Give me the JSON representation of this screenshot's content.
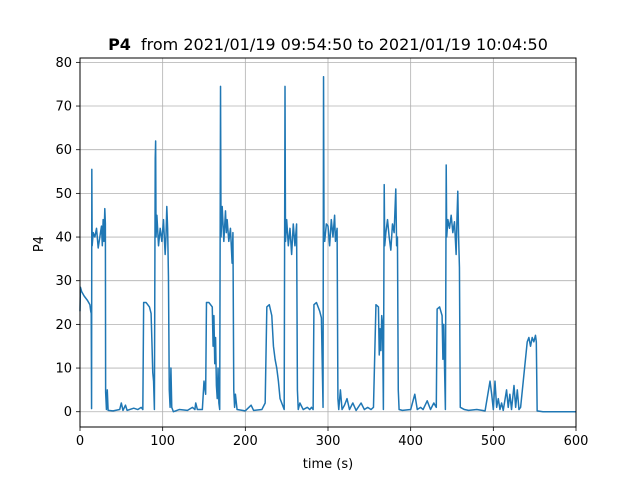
{
  "chart_data": {
    "type": "line",
    "title_bold": "P4",
    "title_rest": "from 2021/01/19 09:54:50 to 2021/01/19 10:04:50",
    "xlabel": "time (s)",
    "ylabel": "P4",
    "xlim": [
      0,
      600
    ],
    "ylim": [
      -3.5,
      81
    ],
    "xticks": [
      0,
      100,
      200,
      300,
      400,
      500,
      600
    ],
    "yticks": [
      0,
      10,
      20,
      30,
      40,
      50,
      60,
      70,
      80
    ],
    "grid": true,
    "line_color": "#1f77b4",
    "series": [
      {
        "points": [
          [
            0,
            23
          ],
          [
            0.5,
            28.5
          ],
          [
            2,
            27.5
          ],
          [
            5,
            26.5
          ],
          [
            9,
            25.5
          ],
          [
            12,
            24.5
          ],
          [
            13,
            23
          ],
          [
            13.6,
            22.5
          ],
          [
            14,
            0.7
          ],
          [
            14.3,
            55.5
          ],
          [
            14.7,
            38
          ],
          [
            16,
            41
          ],
          [
            18,
            40
          ],
          [
            20,
            42
          ],
          [
            22,
            37.5
          ],
          [
            24,
            40
          ],
          [
            26,
            42.5
          ],
          [
            27,
            38
          ],
          [
            28,
            44
          ],
          [
            29,
            39
          ],
          [
            30,
            46.5
          ],
          [
            30.7,
            43
          ],
          [
            31,
            4.5
          ],
          [
            32,
            0.5
          ],
          [
            33,
            5
          ],
          [
            34,
            0.3
          ],
          [
            40,
            0.2
          ],
          [
            48,
            0.5
          ],
          [
            50,
            2
          ],
          [
            52,
            0.3
          ],
          [
            55,
            1.5
          ],
          [
            57,
            0.3
          ],
          [
            65,
            0.8
          ],
          [
            70,
            0.5
          ],
          [
            74,
            1
          ],
          [
            76,
            0.5
          ],
          [
            77,
            25
          ],
          [
            80,
            25
          ],
          [
            84,
            24
          ],
          [
            86,
            22.5
          ],
          [
            87,
            16
          ],
          [
            88,
            9
          ],
          [
            89,
            7
          ],
          [
            90,
            0.5
          ],
          [
            91,
            58
          ],
          [
            91.5,
            62
          ],
          [
            92,
            40
          ],
          [
            93,
            45
          ],
          [
            95,
            38
          ],
          [
            97,
            42
          ],
          [
            99,
            39
          ],
          [
            101,
            44
          ],
          [
            103,
            36
          ],
          [
            104,
            40
          ],
          [
            105,
            47
          ],
          [
            106,
            42
          ],
          [
            107,
            31
          ],
          [
            108,
            5
          ],
          [
            109,
            1
          ],
          [
            110,
            10
          ],
          [
            111,
            1
          ],
          [
            113,
            0
          ],
          [
            120,
            0.5
          ],
          [
            130,
            0.3
          ],
          [
            136,
            1
          ],
          [
            139,
            0.5
          ],
          [
            140,
            2
          ],
          [
            142,
            0.5
          ],
          [
            148,
            0.5
          ],
          [
            150,
            7
          ],
          [
            152,
            4
          ],
          [
            153,
            25
          ],
          [
            156,
            25
          ],
          [
            160,
            24
          ],
          [
            161,
            15
          ],
          [
            162,
            22
          ],
          [
            163,
            11
          ],
          [
            164,
            17
          ],
          [
            165,
            6
          ],
          [
            166,
            3
          ],
          [
            167,
            10
          ],
          [
            168,
            2
          ],
          [
            169,
            0.5
          ],
          [
            170,
            74.5
          ],
          [
            170.6,
            40
          ],
          [
            172,
            47
          ],
          [
            174,
            39
          ],
          [
            176,
            46
          ],
          [
            177,
            41
          ],
          [
            178,
            44
          ],
          [
            180,
            39
          ],
          [
            182,
            42
          ],
          [
            183,
            38
          ],
          [
            184,
            34
          ],
          [
            185,
            41
          ],
          [
            186,
            5
          ],
          [
            187,
            1
          ],
          [
            188,
            4
          ],
          [
            190,
            0.5
          ],
          [
            200,
            0.2
          ],
          [
            207,
            1.5
          ],
          [
            210,
            0.3
          ],
          [
            220,
            0.5
          ],
          [
            224,
            2
          ],
          [
            226,
            24
          ],
          [
            229,
            24.5
          ],
          [
            232,
            22
          ],
          [
            234,
            15
          ],
          [
            236,
            12
          ],
          [
            238,
            10
          ],
          [
            240,
            7
          ],
          [
            242,
            3
          ],
          [
            245,
            1.5
          ],
          [
            247,
            0.5
          ],
          [
            248,
            74.5
          ],
          [
            248.6,
            39
          ],
          [
            250,
            44
          ],
          [
            252,
            38
          ],
          [
            254,
            42
          ],
          [
            256,
            36
          ],
          [
            258,
            43
          ],
          [
            260,
            38
          ],
          [
            262,
            43
          ],
          [
            263,
            5
          ],
          [
            264,
            0.5
          ],
          [
            266,
            2
          ],
          [
            270,
            0.5
          ],
          [
            275,
            1
          ],
          [
            278,
            0.5
          ],
          [
            280,
            1
          ],
          [
            282,
            0.5
          ],
          [
            283,
            24.5
          ],
          [
            286,
            25
          ],
          [
            290,
            23
          ],
          [
            292,
            21.5
          ],
          [
            294,
            1
          ],
          [
            294.6,
            76.7
          ],
          [
            295.2,
            40
          ],
          [
            296,
            39
          ],
          [
            298,
            43
          ],
          [
            300,
            42.5
          ],
          [
            302,
            38
          ],
          [
            304,
            44
          ],
          [
            306,
            40
          ],
          [
            308,
            45
          ],
          [
            309,
            39
          ],
          [
            311,
            42
          ],
          [
            312,
            3
          ],
          [
            313,
            0.5
          ],
          [
            315,
            5
          ],
          [
            317,
            0.5
          ],
          [
            320,
            1.5
          ],
          [
            323,
            3
          ],
          [
            326,
            0.5
          ],
          [
            330,
            2
          ],
          [
            334,
            0.3
          ],
          [
            340,
            2
          ],
          [
            344,
            0.5
          ],
          [
            348,
            1
          ],
          [
            352,
            0.5
          ],
          [
            355,
            1
          ],
          [
            358,
            24.5
          ],
          [
            361,
            24
          ],
          [
            362,
            13
          ],
          [
            363,
            19
          ],
          [
            364,
            14
          ],
          [
            365,
            22
          ],
          [
            366,
            20
          ],
          [
            367,
            0.5
          ],
          [
            368,
            52
          ],
          [
            368.6,
            38
          ],
          [
            370,
            41
          ],
          [
            372,
            44
          ],
          [
            374,
            40
          ],
          [
            376,
            37
          ],
          [
            378,
            43
          ],
          [
            380,
            41
          ],
          [
            382,
            51
          ],
          [
            383,
            38
          ],
          [
            384,
            40
          ],
          [
            385,
            5
          ],
          [
            386,
            0.5
          ],
          [
            390,
            0.3
          ],
          [
            400,
            0.5
          ],
          [
            405,
            4
          ],
          [
            408,
            0.5
          ],
          [
            412,
            1
          ],
          [
            415,
            0.5
          ],
          [
            420,
            2.5
          ],
          [
            424,
            0.5
          ],
          [
            428,
            2
          ],
          [
            431,
            1
          ],
          [
            432,
            23.5
          ],
          [
            435,
            24
          ],
          [
            438,
            22
          ],
          [
            439,
            12
          ],
          [
            440,
            20
          ],
          [
            441,
            10
          ],
          [
            442,
            0.5
          ],
          [
            443,
            56.5
          ],
          [
            443.6,
            40
          ],
          [
            445,
            44
          ],
          [
            447,
            42
          ],
          [
            449,
            45
          ],
          [
            451,
            41
          ],
          [
            453,
            43.5
          ],
          [
            455,
            36
          ],
          [
            456,
            44
          ],
          [
            457,
            50.5
          ],
          [
            458,
            40
          ],
          [
            459,
            33
          ],
          [
            460,
            1
          ],
          [
            465,
            0.5
          ],
          [
            470,
            0.3
          ],
          [
            480,
            0.5
          ],
          [
            490,
            0.2
          ],
          [
            496,
            7
          ],
          [
            498,
            4
          ],
          [
            500,
            0.5
          ],
          [
            502,
            7
          ],
          [
            504,
            1
          ],
          [
            506,
            3
          ],
          [
            508,
            0.5
          ],
          [
            510,
            2
          ],
          [
            512,
            0.3
          ],
          [
            516,
            5
          ],
          [
            518,
            1
          ],
          [
            520,
            4
          ],
          [
            522,
            0.5
          ],
          [
            525,
            6
          ],
          [
            527,
            1
          ],
          [
            529,
            5
          ],
          [
            531,
            0.5
          ],
          [
            533,
            1
          ],
          [
            541,
            16
          ],
          [
            543,
            17
          ],
          [
            545,
            15
          ],
          [
            547,
            17
          ],
          [
            549,
            16
          ],
          [
            551,
            17.5
          ],
          [
            552,
            16
          ],
          [
            553,
            0.2
          ],
          [
            560,
            0
          ],
          [
            580,
            0
          ],
          [
            600,
            0
          ]
        ]
      }
    ]
  }
}
